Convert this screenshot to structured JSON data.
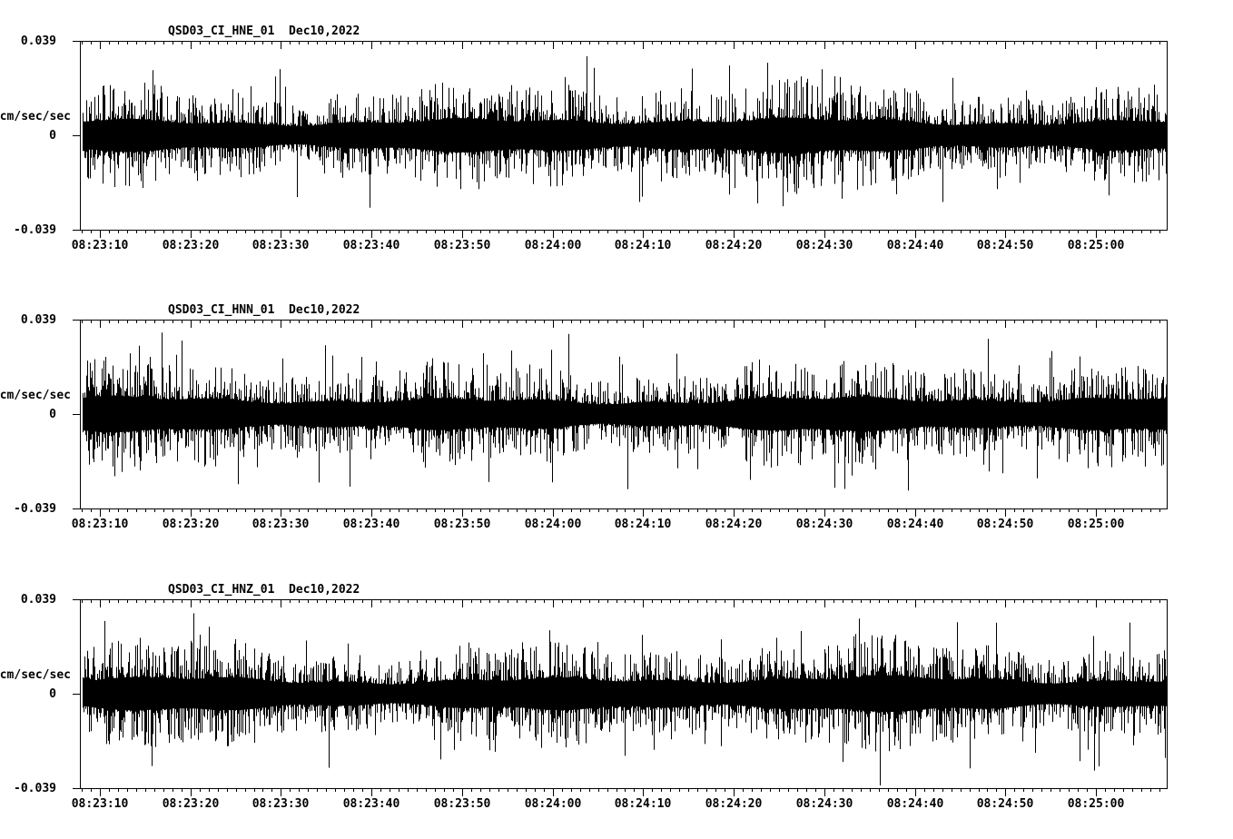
{
  "app": {
    "background_color": "#ffffff",
    "trace_color": "#000000"
  },
  "chart_data": [
    {
      "type": "line",
      "title": "QSD03_CI_HNE_01  Dec10,2022",
      "station": "QSD03",
      "channel": "CI_HNE_01",
      "date": "Dec10,2022",
      "ylabel": "cm/sec/sec",
      "ylim": [
        -0.039,
        0.039
      ],
      "ytick_labels": [
        "0.039",
        "0",
        "-0.039"
      ],
      "xtick_labels": [
        "08:23:10",
        "08:23:20",
        "08:23:30",
        "08:23:40",
        "08:23:50",
        "08:24:00",
        "08:24:10",
        "08:24:20",
        "08:24:30",
        "08:24:40",
        "08:24:50",
        "08:25:00"
      ],
      "x_span_seconds": 120,
      "x_first_tick_offset_seconds": 2.2,
      "x_major_interval_seconds": 10,
      "x_minor_interval_seconds": 1,
      "grid": false,
      "legend": "none",
      "series": {
        "name": "HNE",
        "description": "continuous broadband seismic acceleration noise, dense black trace centered on zero",
        "typical_amplitude": 0.01,
        "peak_amplitude": 0.038,
        "seed": 101
      }
    },
    {
      "type": "line",
      "title": "QSD03_CI_HNN_01  Dec10,2022",
      "station": "QSD03",
      "channel": "CI_HNN_01",
      "date": "Dec10,2022",
      "ylabel": "cm/sec/sec",
      "ylim": [
        -0.039,
        0.039
      ],
      "ytick_labels": [
        "0.039",
        "0",
        "-0.039"
      ],
      "xtick_labels": [
        "08:23:10",
        "08:23:20",
        "08:23:30",
        "08:23:40",
        "08:23:50",
        "08:24:00",
        "08:24:10",
        "08:24:20",
        "08:24:30",
        "08:24:40",
        "08:24:50",
        "08:25:00"
      ],
      "x_span_seconds": 120,
      "x_first_tick_offset_seconds": 2.2,
      "x_major_interval_seconds": 10,
      "x_minor_interval_seconds": 1,
      "grid": false,
      "legend": "none",
      "series": {
        "name": "HNN",
        "description": "continuous broadband seismic acceleration noise, dense black trace centered on zero",
        "typical_amplitude": 0.011,
        "peak_amplitude": 0.039,
        "seed": 202
      }
    },
    {
      "type": "line",
      "title": "QSD03_CI_HNZ_01  Dec10,2022",
      "station": "QSD03",
      "channel": "CI_HNZ_01",
      "date": "Dec10,2022",
      "ylabel": "cm/sec/sec",
      "ylim": [
        -0.039,
        0.039
      ],
      "ytick_labels": [
        "0.039",
        "0",
        "-0.039"
      ],
      "xtick_labels": [
        "08:23:10",
        "08:23:20",
        "08:23:30",
        "08:23:40",
        "08:23:50",
        "08:24:00",
        "08:24:10",
        "08:24:20",
        "08:24:30",
        "08:24:40",
        "08:24:50",
        "08:25:00"
      ],
      "x_span_seconds": 120,
      "x_first_tick_offset_seconds": 2.2,
      "x_major_interval_seconds": 10,
      "x_minor_interval_seconds": 1,
      "grid": false,
      "legend": "none",
      "series": {
        "name": "HNZ",
        "description": "continuous broadband seismic acceleration noise, dense black trace centered on zero",
        "typical_amplitude": 0.01,
        "peak_amplitude": 0.038,
        "seed": 303
      }
    }
  ]
}
